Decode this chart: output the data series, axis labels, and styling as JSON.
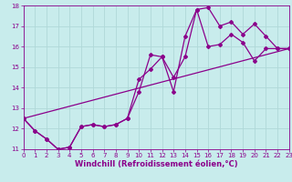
{
  "title": "",
  "xlabel": "Windchill (Refroidissement éolien,°C)",
  "ylabel": "",
  "bg_color": "#c8ecec",
  "line_color": "#8b008b",
  "grid_color": "#b0d8d8",
  "x_min": 0,
  "x_max": 23,
  "y_min": 11,
  "y_max": 18,
  "line1_x": [
    0,
    1,
    2,
    3,
    4,
    5,
    6,
    7,
    8,
    9,
    10,
    11,
    12,
    13,
    14,
    15,
    16,
    17,
    18,
    19,
    20,
    21,
    22,
    23
  ],
  "line1_y": [
    12.5,
    11.9,
    11.5,
    11.0,
    11.1,
    12.1,
    12.2,
    12.1,
    12.2,
    12.5,
    13.8,
    15.6,
    15.5,
    13.8,
    16.5,
    17.8,
    17.9,
    17.0,
    17.2,
    16.6,
    17.1,
    16.5,
    15.9,
    15.9
  ],
  "line2_x": [
    0,
    1,
    2,
    3,
    4,
    5,
    6,
    7,
    8,
    9,
    10,
    11,
    12,
    13,
    14,
    15,
    16,
    17,
    18,
    19,
    20,
    21,
    22,
    23
  ],
  "line2_y": [
    12.5,
    11.9,
    11.5,
    11.0,
    11.1,
    12.1,
    12.2,
    12.1,
    12.2,
    12.5,
    14.4,
    14.9,
    15.5,
    14.5,
    15.5,
    17.8,
    16.0,
    16.1,
    16.6,
    16.2,
    15.3,
    15.9,
    15.9,
    15.9
  ],
  "ref_line_x": [
    0,
    23
  ],
  "ref_line_y": [
    12.5,
    15.9
  ],
  "tick_label_size": 5,
  "xlabel_size": 6,
  "marker": "D",
  "marker_size": 2,
  "line_width": 0.9
}
